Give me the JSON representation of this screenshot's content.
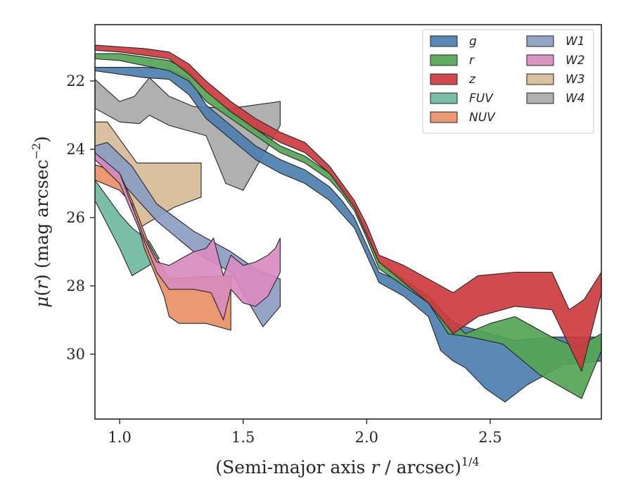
{
  "chart_data": {
    "type": "area",
    "title": "",
    "xlabel": "(Semi-major axis r / arcsec)1/4",
    "xlabel_parts": {
      "main": "(Semi-major axis ",
      "var": "r",
      "rest": " / arcsec)",
      "sup": "1/4"
    },
    "ylabel": "μ(r) (mag arcsec−2)",
    "ylabel_parts": {
      "mu": "μ",
      "open": "(",
      "var": "r",
      "close": ") (mag arcsec",
      "sup": "−2",
      "end": ")"
    },
    "xlim": [
      0.9,
      2.95
    ],
    "ylim": [
      31.9,
      20.35
    ],
    "y_inverted": true,
    "grid": false,
    "legend_position": "top-right",
    "xticks": [
      1.0,
      1.5,
      2.0,
      2.5
    ],
    "xtick_labels": [
      "1.0",
      "1.5",
      "2.0",
      "2.5"
    ],
    "yticks": [
      22,
      24,
      26,
      28,
      30
    ],
    "ytick_labels": [
      "22",
      "24",
      "26",
      "28",
      "30"
    ],
    "series": [
      {
        "name": "W4",
        "color": "#a9a9a9",
        "upper": [
          [
            0.9,
            21.95
          ],
          [
            1.0,
            22.6
          ],
          [
            1.06,
            22.45
          ],
          [
            1.12,
            21.9
          ],
          [
            1.2,
            22.45
          ],
          [
            1.3,
            22.75
          ],
          [
            1.45,
            22.8
          ],
          [
            1.65,
            22.6
          ]
        ],
        "lower": [
          [
            0.9,
            22.8
          ],
          [
            1.0,
            23.2
          ],
          [
            1.08,
            23.25
          ],
          [
            1.12,
            23.0
          ],
          [
            1.2,
            23.3
          ],
          [
            1.35,
            23.6
          ],
          [
            1.43,
            25.0
          ],
          [
            1.5,
            25.2
          ],
          [
            1.65,
            23.3
          ]
        ]
      },
      {
        "name": "W3",
        "color": "#d6bc98",
        "upper": [
          [
            0.9,
            23.2
          ],
          [
            0.95,
            23.2
          ],
          [
            1.0,
            23.7
          ],
          [
            1.07,
            24.4
          ],
          [
            1.18,
            24.4
          ],
          [
            1.33,
            24.4
          ]
        ],
        "lower": [
          [
            0.9,
            24.3
          ],
          [
            1.0,
            24.8
          ],
          [
            1.05,
            25.5
          ],
          [
            1.08,
            26.3
          ],
          [
            1.15,
            26.0
          ],
          [
            1.22,
            25.7
          ],
          [
            1.33,
            25.4
          ]
        ]
      },
      {
        "name": "W1",
        "color": "#8c9dc2",
        "upper": [
          [
            0.9,
            23.9
          ],
          [
            0.95,
            23.8
          ],
          [
            1.05,
            24.5
          ],
          [
            1.15,
            25.6
          ],
          [
            1.3,
            26.4
          ],
          [
            1.45,
            27.0
          ],
          [
            1.55,
            27.5
          ],
          [
            1.65,
            27.8
          ]
        ],
        "lower": [
          [
            0.9,
            24.1
          ],
          [
            1.0,
            24.9
          ],
          [
            1.05,
            25.3
          ],
          [
            1.15,
            26.1
          ],
          [
            1.3,
            27.0
          ],
          [
            1.45,
            27.6
          ],
          [
            1.58,
            29.2
          ],
          [
            1.65,
            28.6
          ]
        ]
      },
      {
        "name": "FUV",
        "color": "#6fb89f",
        "upper": [
          [
            0.9,
            24.9
          ],
          [
            1.0,
            25.9
          ],
          [
            1.05,
            26.3
          ],
          [
            1.12,
            26.7
          ],
          [
            1.16,
            27.2
          ]
        ],
        "lower": [
          [
            0.9,
            25.5
          ],
          [
            1.0,
            26.9
          ],
          [
            1.05,
            27.7
          ],
          [
            1.12,
            27.4
          ],
          [
            1.14,
            27.2
          ]
        ]
      },
      {
        "name": "NUV",
        "color": "#e89066",
        "upper": [
          [
            0.9,
            24.45
          ],
          [
            1.0,
            24.7
          ],
          [
            1.05,
            25.5
          ],
          [
            1.12,
            26.8
          ],
          [
            1.2,
            27.8
          ],
          [
            1.3,
            27.75
          ],
          [
            1.45,
            27.7
          ]
        ],
        "lower": [
          [
            0.9,
            24.9
          ],
          [
            1.0,
            25.2
          ],
          [
            1.05,
            25.6
          ],
          [
            1.1,
            26.9
          ],
          [
            1.18,
            28.3
          ],
          [
            1.2,
            28.9
          ],
          [
            1.24,
            29.1
          ],
          [
            1.35,
            29.1
          ],
          [
            1.45,
            29.3
          ]
        ]
      },
      {
        "name": "W2",
        "color": "#d88bbf",
        "upper": [
          [
            0.9,
            24.1
          ],
          [
            1.0,
            24.7
          ],
          [
            1.1,
            26.6
          ],
          [
            1.15,
            27.3
          ],
          [
            1.2,
            27.4
          ],
          [
            1.3,
            27.0
          ],
          [
            1.35,
            26.9
          ],
          [
            1.38,
            26.6
          ],
          [
            1.42,
            27.7
          ],
          [
            1.45,
            27.1
          ],
          [
            1.5,
            27.4
          ],
          [
            1.55,
            27.3
          ],
          [
            1.6,
            27.1
          ],
          [
            1.63,
            26.9
          ],
          [
            1.65,
            26.6
          ]
        ],
        "lower": [
          [
            0.9,
            24.3
          ],
          [
            1.0,
            25.0
          ],
          [
            1.1,
            26.7
          ],
          [
            1.15,
            27.6
          ],
          [
            1.2,
            28.1
          ],
          [
            1.3,
            28.1
          ],
          [
            1.37,
            28.2
          ],
          [
            1.42,
            29.0
          ],
          [
            1.45,
            28.1
          ],
          [
            1.5,
            28.5
          ],
          [
            1.55,
            28.6
          ],
          [
            1.6,
            28.3
          ],
          [
            1.65,
            27.6
          ]
        ]
      },
      {
        "name": "g",
        "color": "#4c7fb0",
        "upper": [
          [
            0.9,
            21.6
          ],
          [
            1.0,
            21.6
          ],
          [
            1.1,
            21.6
          ],
          [
            1.2,
            21.65
          ],
          [
            1.28,
            21.9
          ],
          [
            1.35,
            22.7
          ],
          [
            1.45,
            23.3
          ],
          [
            1.55,
            23.9
          ],
          [
            1.65,
            24.3
          ],
          [
            1.75,
            24.6
          ],
          [
            1.85,
            25.1
          ],
          [
            1.9,
            25.5
          ],
          [
            1.95,
            26.0
          ],
          [
            2.0,
            26.8
          ],
          [
            2.05,
            27.6
          ],
          [
            2.15,
            27.9
          ],
          [
            2.25,
            28.4
          ],
          [
            2.33,
            29.0
          ],
          [
            2.4,
            29.2
          ],
          [
            2.5,
            29.4
          ],
          [
            2.6,
            29.6
          ],
          [
            2.75,
            29.5
          ],
          [
            2.95,
            29.5
          ]
        ],
        "lower": [
          [
            0.9,
            21.7
          ],
          [
            1.0,
            21.8
          ],
          [
            1.1,
            21.9
          ],
          [
            1.2,
            21.95
          ],
          [
            1.28,
            22.4
          ],
          [
            1.35,
            23.1
          ],
          [
            1.45,
            23.7
          ],
          [
            1.55,
            24.3
          ],
          [
            1.65,
            24.7
          ],
          [
            1.75,
            25.0
          ],
          [
            1.85,
            25.5
          ],
          [
            1.9,
            25.9
          ],
          [
            1.95,
            26.3
          ],
          [
            2.0,
            27.1
          ],
          [
            2.05,
            27.9
          ],
          [
            2.15,
            28.3
          ],
          [
            2.25,
            28.9
          ],
          [
            2.3,
            29.9
          ],
          [
            2.35,
            30.2
          ],
          [
            2.4,
            30.4
          ],
          [
            2.48,
            31.0
          ],
          [
            2.56,
            31.4
          ],
          [
            2.65,
            30.9
          ],
          [
            2.8,
            30.3
          ],
          [
            2.95,
            30.2
          ]
        ]
      },
      {
        "name": "r",
        "color": "#55a455",
        "upper": [
          [
            0.9,
            21.2
          ],
          [
            1.0,
            21.2
          ],
          [
            1.1,
            21.3
          ],
          [
            1.2,
            21.4
          ],
          [
            1.28,
            21.7
          ],
          [
            1.35,
            22.3
          ],
          [
            1.45,
            22.9
          ],
          [
            1.55,
            23.4
          ],
          [
            1.65,
            23.9
          ],
          [
            1.75,
            24.2
          ],
          [
            1.85,
            24.7
          ],
          [
            1.9,
            25.1
          ],
          [
            1.95,
            25.6
          ],
          [
            2.0,
            26.4
          ],
          [
            2.05,
            27.3
          ],
          [
            2.15,
            27.8
          ],
          [
            2.25,
            28.3
          ],
          [
            2.33,
            28.9
          ],
          [
            2.4,
            29.4
          ],
          [
            2.5,
            29.1
          ],
          [
            2.6,
            28.9
          ],
          [
            2.75,
            29.5
          ],
          [
            2.85,
            29.8
          ],
          [
            2.95,
            29.4
          ]
        ],
        "lower": [
          [
            0.9,
            21.35
          ],
          [
            1.0,
            21.4
          ],
          [
            1.1,
            21.55
          ],
          [
            1.2,
            21.7
          ],
          [
            1.28,
            22.0
          ],
          [
            1.35,
            22.6
          ],
          [
            1.45,
            23.1
          ],
          [
            1.55,
            23.6
          ],
          [
            1.65,
            24.1
          ],
          [
            1.75,
            24.4
          ],
          [
            1.85,
            24.9
          ],
          [
            1.9,
            25.3
          ],
          [
            1.95,
            25.8
          ],
          [
            2.0,
            26.6
          ],
          [
            2.05,
            27.5
          ],
          [
            2.15,
            28.0
          ],
          [
            2.25,
            28.5
          ],
          [
            2.33,
            29.4
          ],
          [
            2.42,
            29.5
          ],
          [
            2.55,
            29.7
          ],
          [
            2.7,
            30.6
          ],
          [
            2.87,
            31.3
          ],
          [
            2.95,
            29.9
          ]
        ]
      },
      {
        "name": "z",
        "color": "#cc3b3f",
        "upper": [
          [
            0.9,
            20.95
          ],
          [
            1.0,
            21.0
          ],
          [
            1.1,
            21.05
          ],
          [
            1.2,
            21.15
          ],
          [
            1.28,
            21.5
          ],
          [
            1.35,
            22.0
          ],
          [
            1.45,
            22.6
          ],
          [
            1.55,
            23.1
          ],
          [
            1.65,
            23.5
          ],
          [
            1.75,
            23.8
          ],
          [
            1.85,
            24.5
          ],
          [
            1.9,
            25.0
          ],
          [
            1.95,
            25.5
          ],
          [
            2.0,
            26.2
          ],
          [
            2.05,
            27.1
          ],
          [
            2.15,
            27.4
          ],
          [
            2.25,
            27.8
          ],
          [
            2.35,
            28.2
          ],
          [
            2.45,
            27.7
          ],
          [
            2.6,
            27.6
          ],
          [
            2.75,
            27.6
          ],
          [
            2.82,
            28.7
          ],
          [
            2.88,
            28.4
          ],
          [
            2.95,
            27.6
          ]
        ],
        "lower": [
          [
            0.9,
            21.1
          ],
          [
            1.0,
            21.15
          ],
          [
            1.1,
            21.25
          ],
          [
            1.2,
            21.35
          ],
          [
            1.28,
            21.8
          ],
          [
            1.35,
            22.3
          ],
          [
            1.45,
            22.9
          ],
          [
            1.55,
            23.4
          ],
          [
            1.65,
            23.8
          ],
          [
            1.75,
            24.1
          ],
          [
            1.85,
            24.7
          ],
          [
            1.9,
            25.2
          ],
          [
            1.95,
            25.7
          ],
          [
            2.0,
            26.5
          ],
          [
            2.05,
            27.3
          ],
          [
            2.15,
            27.9
          ],
          [
            2.25,
            28.5
          ],
          [
            2.35,
            29.4
          ],
          [
            2.45,
            28.9
          ],
          [
            2.6,
            28.6
          ],
          [
            2.75,
            28.7
          ],
          [
            2.87,
            30.5
          ],
          [
            2.95,
            28.2
          ]
        ]
      }
    ],
    "legend": {
      "columns": [
        [
          "g",
          "r",
          "z",
          "FUV",
          "NUV"
        ],
        [
          "W1",
          "W2",
          "W3",
          "W4"
        ]
      ]
    }
  }
}
